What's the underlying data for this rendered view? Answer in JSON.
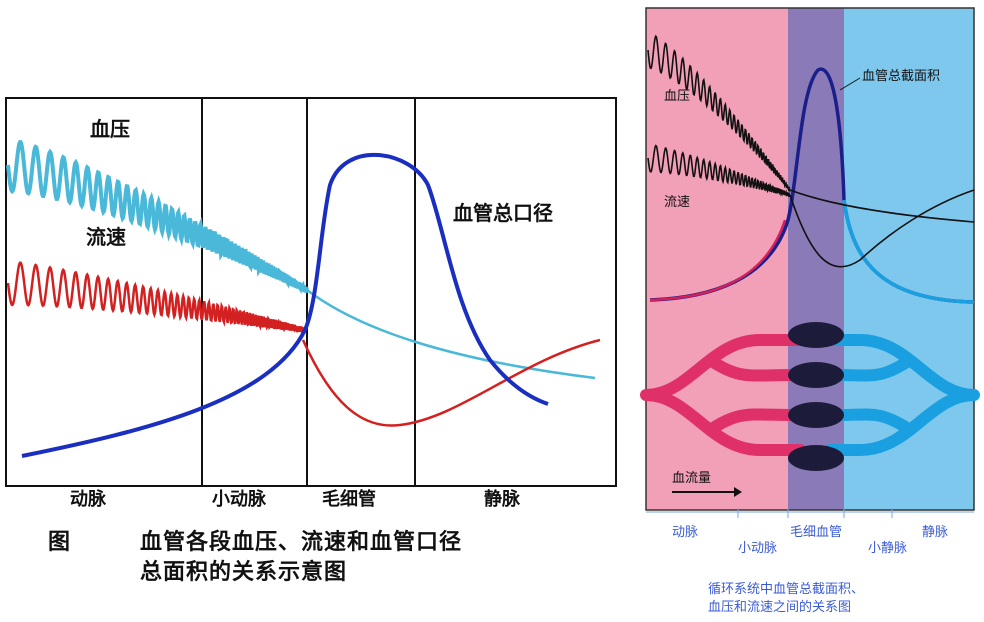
{
  "left_diagram": {
    "labels": {
      "pressure": "血压",
      "velocity": "流速",
      "diameter": "血管总口径"
    },
    "segments": [
      "动脉",
      "小动脉",
      "毛细管",
      "静脉"
    ],
    "caption_prefix": "图",
    "caption_line1": "血管各段血压、流速和血管口径",
    "caption_line2": "总面积的关系示意图"
  },
  "right_diagram": {
    "labels": {
      "area": "血管总截面积",
      "pressure": "血压",
      "velocity": "流速",
      "flow": "血流量"
    },
    "segments": [
      "动脉",
      "小动脉",
      "毛细血管",
      "小静脉",
      "静脉"
    ],
    "caption_line1": "循环系统中血管总截面积、",
    "caption_line2": "血压和流速之间的关系图"
  },
  "colors": {
    "pressure": "#4ab8d8",
    "velocity": "#d32020",
    "diameter": "#1a2fc0",
    "artery_bg": "#f2a0b8",
    "capillary_bg": "#8a7ab8",
    "vein_bg": "#7ec8ee"
  }
}
